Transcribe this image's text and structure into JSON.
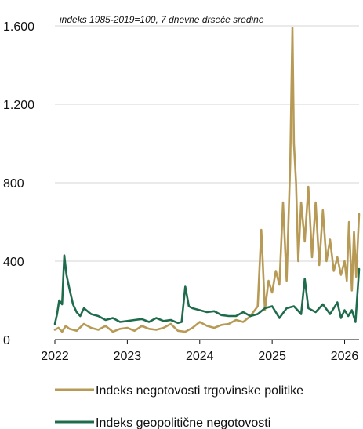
{
  "chart_data": {
    "type": "line",
    "subtitle": "indeks 1985-2019=100, 7 dnevne drseče sredine",
    "ylim": [
      0,
      1600
    ],
    "y_ticks": [
      {
        "value": 0,
        "label": "0"
      },
      {
        "value": 400,
        "label": "400"
      },
      {
        "value": 800,
        "label": "800"
      },
      {
        "value": 1200,
        "label": "1.200"
      },
      {
        "value": 1600,
        "label": "1.600"
      }
    ],
    "xlim": [
      2022,
      2026.2
    ],
    "x_ticks": [
      {
        "value": 2022,
        "label": "2022"
      },
      {
        "value": 2023,
        "label": "2023"
      },
      {
        "value": 2024,
        "label": "2024"
      },
      {
        "value": 2025,
        "label": "2025"
      },
      {
        "value": 2026,
        "label": "2026"
      }
    ],
    "grid": "horizontal",
    "legend_position": "bottom",
    "series": [
      {
        "name": "Indeks negotovosti trgovinske politike",
        "color": "#B79A55",
        "x": [
          2022.0,
          2022.05,
          2022.1,
          2022.15,
          2022.2,
          2022.3,
          2022.4,
          2022.5,
          2022.6,
          2022.7,
          2022.8,
          2022.9,
          2023.0,
          2023.1,
          2023.2,
          2023.3,
          2023.4,
          2023.5,
          2023.6,
          2023.7,
          2023.8,
          2023.9,
          2024.0,
          2024.1,
          2024.2,
          2024.3,
          2024.4,
          2024.5,
          2024.6,
          2024.7,
          2024.8,
          2024.85,
          2024.9,
          2024.95,
          2025.0,
          2025.05,
          2025.1,
          2025.15,
          2025.2,
          2025.25,
          2025.28,
          2025.3,
          2025.33,
          2025.36,
          2025.4,
          2025.45,
          2025.5,
          2025.55,
          2025.6,
          2025.65,
          2025.7,
          2025.75,
          2025.8,
          2025.85,
          2025.9,
          2025.95,
          2026.0,
          2026.03,
          2026.06,
          2026.1,
          2026.13,
          2026.16,
          2026.2
        ],
        "y": [
          50,
          60,
          40,
          70,
          55,
          45,
          80,
          60,
          50,
          70,
          40,
          55,
          60,
          45,
          70,
          55,
          50,
          60,
          80,
          45,
          40,
          60,
          90,
          70,
          60,
          75,
          80,
          100,
          90,
          120,
          170,
          560,
          150,
          300,
          240,
          350,
          280,
          700,
          300,
          900,
          1590,
          1000,
          800,
          400,
          700,
          500,
          780,
          420,
          700,
          380,
          660,
          400,
          510,
          350,
          420,
          330,
          400,
          300,
          600,
          250,
          550,
          320,
          640
        ]
      },
      {
        "name": "Indeks geopolitične negotovosti",
        "color": "#1F6C4D",
        "x": [
          2022.0,
          2022.03,
          2022.06,
          2022.1,
          2022.13,
          2022.16,
          2022.2,
          2022.25,
          2022.3,
          2022.35,
          2022.4,
          2022.5,
          2022.6,
          2022.7,
          2022.8,
          2022.9,
          2023.0,
          2023.1,
          2023.2,
          2023.3,
          2023.4,
          2023.5,
          2023.6,
          2023.7,
          2023.75,
          2023.8,
          2023.85,
          2023.9,
          2024.0,
          2024.1,
          2024.2,
          2024.3,
          2024.4,
          2024.5,
          2024.6,
          2024.7,
          2024.8,
          2024.9,
          2025.0,
          2025.1,
          2025.2,
          2025.3,
          2025.4,
          2025.45,
          2025.5,
          2025.6,
          2025.7,
          2025.8,
          2025.9,
          2025.95,
          2026.0,
          2026.05,
          2026.1,
          2026.15,
          2026.2
        ],
        "y": [
          80,
          130,
          200,
          180,
          430,
          330,
          260,
          180,
          140,
          120,
          160,
          130,
          120,
          100,
          110,
          90,
          95,
          100,
          105,
          90,
          110,
          95,
          100,
          85,
          90,
          270,
          170,
          160,
          150,
          140,
          145,
          125,
          120,
          120,
          140,
          120,
          130,
          160,
          170,
          110,
          160,
          170,
          130,
          310,
          160,
          140,
          180,
          130,
          190,
          110,
          150,
          120,
          150,
          90,
          360
        ]
      }
    ]
  }
}
